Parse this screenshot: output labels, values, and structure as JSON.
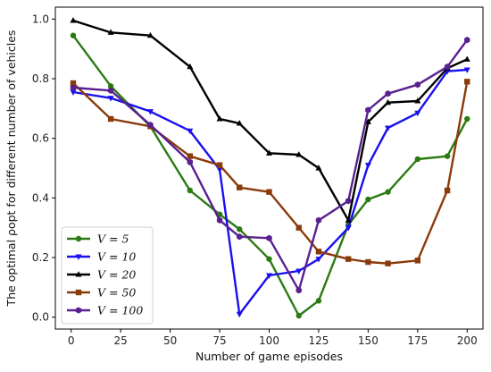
{
  "chart_data": {
    "type": "line",
    "xlabel": "Number of game episodes",
    "ylabel": "The optimal ρopt for different number of vehicles",
    "xlim": [
      -8,
      208
    ],
    "ylim": [
      -0.04,
      1.04
    ],
    "xticks": [
      0,
      25,
      50,
      75,
      100,
      125,
      150,
      175,
      200
    ],
    "xtick_labels": [
      "0",
      "25",
      "50",
      "75",
      "100",
      "125",
      "150",
      "175",
      "200"
    ],
    "yticks": [
      0.0,
      0.2,
      0.4,
      0.6,
      0.8,
      1.0
    ],
    "ytick_labels": [
      "0.0",
      "0.2",
      "0.4",
      "0.6",
      "0.8",
      "1.0"
    ],
    "grid": false,
    "legend_position": "lower-left",
    "series": [
      {
        "name": "V = 5",
        "color": "#2a7a12",
        "marker": "circle",
        "x": [
          1,
          20,
          40,
          60,
          75,
          85,
          100,
          115,
          125,
          140,
          150,
          160,
          175,
          190,
          200
        ],
        "y": [
          0.945,
          0.775,
          0.64,
          0.425,
          0.345,
          0.295,
          0.195,
          0.005,
          0.055,
          0.31,
          0.395,
          0.42,
          0.53,
          0.54,
          0.665
        ]
      },
      {
        "name": "V = 10",
        "color": "#1a10ee",
        "marker": "triangle-down",
        "x": [
          1,
          20,
          40,
          60,
          75,
          85,
          100,
          115,
          125,
          140,
          150,
          160,
          175,
          190,
          200
        ],
        "y": [
          0.755,
          0.735,
          0.69,
          0.625,
          0.495,
          0.01,
          0.14,
          0.155,
          0.195,
          0.3,
          0.51,
          0.635,
          0.685,
          0.825,
          0.83
        ]
      },
      {
        "name": "V = 20",
        "color": "#000000",
        "marker": "triangle-up",
        "x": [
          1,
          20,
          40,
          60,
          75,
          85,
          100,
          115,
          125,
          140,
          150,
          160,
          175,
          190,
          200
        ],
        "y": [
          0.995,
          0.955,
          0.945,
          0.84,
          0.665,
          0.65,
          0.55,
          0.545,
          0.5,
          0.325,
          0.655,
          0.72,
          0.725,
          0.835,
          0.865
        ]
      },
      {
        "name": "V = 50",
        "color": "#8b3a0a",
        "marker": "square",
        "x": [
          1,
          20,
          40,
          60,
          75,
          85,
          100,
          115,
          125,
          140,
          150,
          160,
          175,
          190,
          200
        ],
        "y": [
          0.785,
          0.665,
          0.64,
          0.54,
          0.51,
          0.435,
          0.42,
          0.3,
          0.22,
          0.195,
          0.185,
          0.18,
          0.19,
          0.425,
          0.79
        ]
      },
      {
        "name": "V = 100",
        "color": "#5a2090",
        "marker": "hexagon",
        "x": [
          1,
          20,
          40,
          60,
          75,
          85,
          100,
          115,
          125,
          140,
          150,
          160,
          175,
          190,
          200
        ],
        "y": [
          0.77,
          0.76,
          0.645,
          0.52,
          0.325,
          0.27,
          0.265,
          0.09,
          0.325,
          0.39,
          0.695,
          0.75,
          0.78,
          0.84,
          0.93
        ]
      }
    ]
  }
}
